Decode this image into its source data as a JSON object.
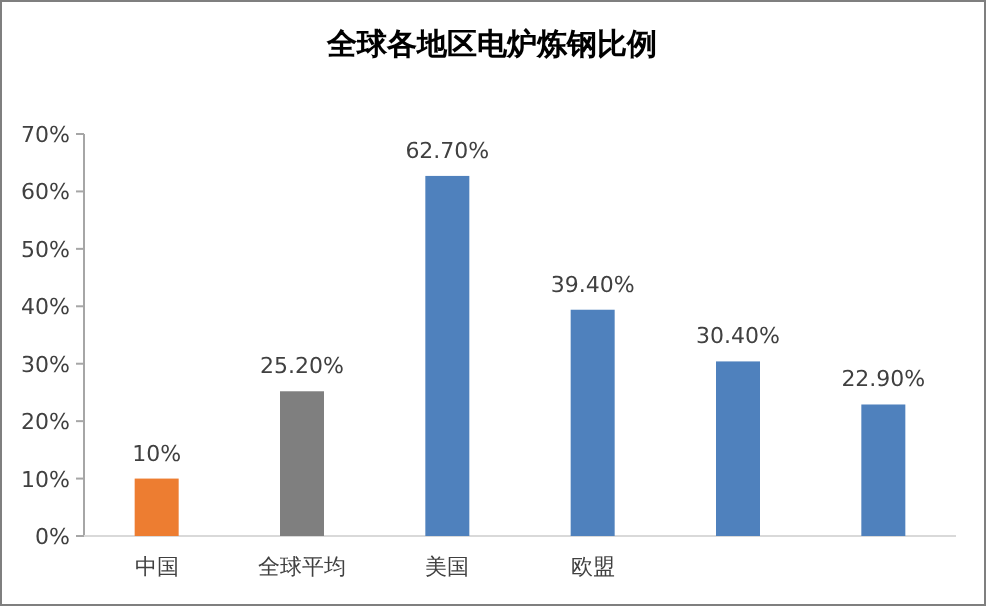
{
  "chart_data": {
    "type": "bar",
    "title": "全球各地区电炉炼钢比例",
    "categories": [
      "中国",
      "全球平均",
      "美国",
      "欧盟",
      null,
      null
    ],
    "values": [
      10,
      25.2,
      62.7,
      39.4,
      30.4,
      22.9
    ],
    "colors": [
      "#ed7d31",
      "#7f7f7f",
      "#4f81bd",
      "#4f81bd",
      "#4f81bd",
      "#4f81bd"
    ],
    "value_labels": [
      "10%",
      "25.20%",
      "62.70%",
      "39.40%",
      "30.40%",
      "22.90%"
    ],
    "ylim": [
      0,
      70
    ],
    "yticks": [
      {
        "value": 0,
        "label": "0%"
      },
      {
        "value": 10,
        "label": "10%"
      },
      {
        "value": 20,
        "label": "20%"
      },
      {
        "value": 30,
        "label": "30%"
      },
      {
        "value": 40,
        "label": "40%"
      },
      {
        "value": 50,
        "label": "50%"
      },
      {
        "value": 60,
        "label": "60%"
      },
      {
        "value": 70,
        "label": "70%"
      }
    ],
    "grid": false
  }
}
